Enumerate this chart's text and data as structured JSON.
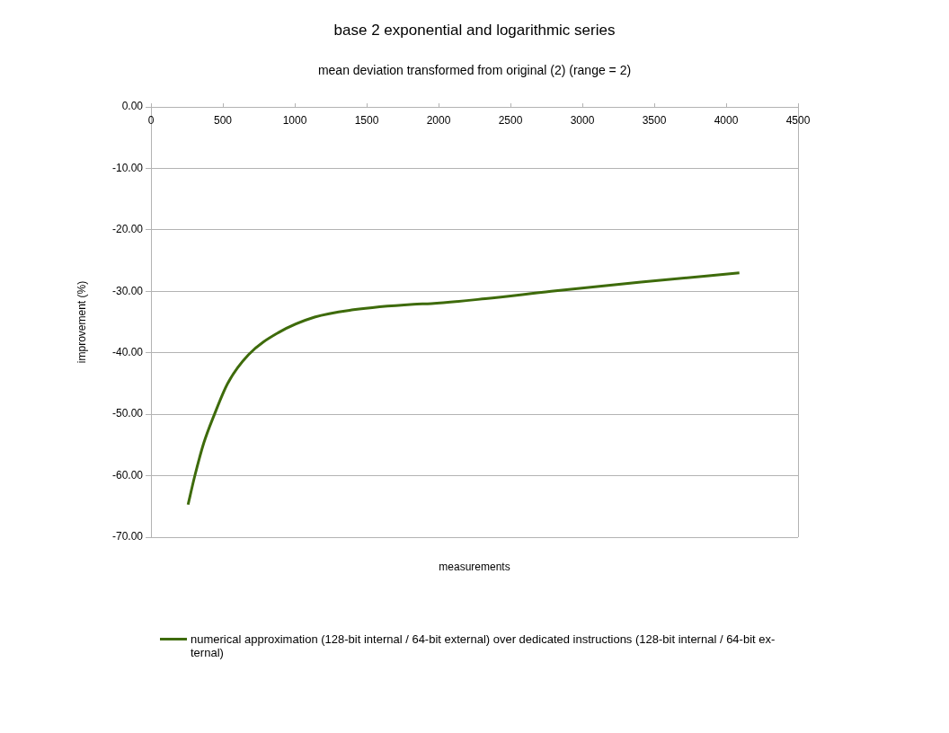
{
  "chart_data": {
    "type": "line",
    "title": "base 2 exponential and logarithmic series",
    "subtitle": "mean deviation transformed from original (2) (range = 2)",
    "xlabel": "measurements",
    "ylabel": "improvement (%)",
    "xlim": [
      0,
      4500
    ],
    "xticks": [
      0,
      500,
      1000,
      1500,
      2000,
      2500,
      3000,
      3500,
      4000,
      4500
    ],
    "ylim": [
      -70,
      0
    ],
    "yticks": [
      {
        "value": 0,
        "label": "0.00"
      },
      {
        "value": -10,
        "label": "-10.00"
      },
      {
        "value": -20,
        "label": "-20.00"
      },
      {
        "value": -30,
        "label": "-30.00"
      },
      {
        "value": -40,
        "label": "-40.00"
      },
      {
        "value": -50,
        "label": "-50.00"
      },
      {
        "value": -60,
        "label": "-60.00"
      },
      {
        "value": -70,
        "label": "-70.00"
      }
    ],
    "grid": "y",
    "legend": "bottom",
    "marker": "none",
    "line_style": "solid",
    "series": [
      {
        "name": "numerical approximation (128-bit internal / 64-bit external) over dedicated instructions (128-bit internal / 64-bit ex-ternal)",
        "color": "#3e6b0b",
        "x": [
          258,
          304,
          367,
          440,
          533,
          679,
          888,
          1138,
          1408,
          1825,
          1950,
          2325,
          2783,
          3408,
          4092
        ],
        "values": [
          -64.7,
          -60.1,
          -54.7,
          -50.1,
          -45.0,
          -40.3,
          -36.7,
          -34.2,
          -33.0,
          -32.1,
          -32.0,
          -31.2,
          -30.0,
          -28.5,
          -27.0
        ]
      }
    ]
  }
}
